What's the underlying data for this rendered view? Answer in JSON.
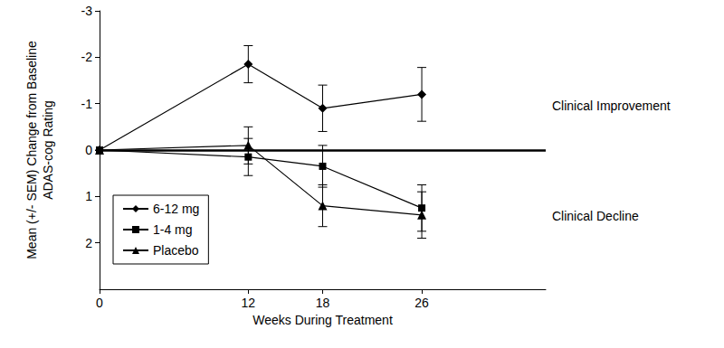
{
  "chart_data": {
    "type": "line",
    "x_label": "Weeks During Treatment",
    "y_label": "Mean (+/- SEM) Change from Baseline\nADAS-cog Rating",
    "xlim": [
      0,
      36
    ],
    "xticks": [
      0,
      12,
      18,
      26
    ],
    "ylim": [
      3,
      -3
    ],
    "yticks": [
      -3,
      -2,
      -1,
      0,
      1,
      2
    ],
    "grid": false,
    "legend": "lower left",
    "reference_line": {
      "y": 0
    },
    "annotations": [
      "Clinical Improvement",
      "Clinical Decline"
    ],
    "x": [
      0,
      12,
      18,
      26
    ],
    "series": [
      {
        "name": "6-12 mg",
        "color": "#000000",
        "marker": "diamond",
        "line_style": "solid",
        "values": [
          0,
          -1.85,
          -0.9,
          -1.2
        ],
        "sem": [
          null,
          0.4,
          0.5,
          0.58
        ]
      },
      {
        "name": "1-4 mg",
        "color": "#000000",
        "marker": "square",
        "line_style": "solid",
        "values": [
          0,
          0.15,
          0.35,
          1.25
        ],
        "sem": [
          null,
          0.4,
          0.45,
          0.5
        ]
      },
      {
        "name": "Placebo",
        "color": "#000000",
        "marker": "triangle",
        "line_style": "solid",
        "values": [
          0,
          -0.1,
          1.2,
          1.4
        ],
        "sem": [
          null,
          0.4,
          0.45,
          0.5
        ]
      }
    ]
  }
}
